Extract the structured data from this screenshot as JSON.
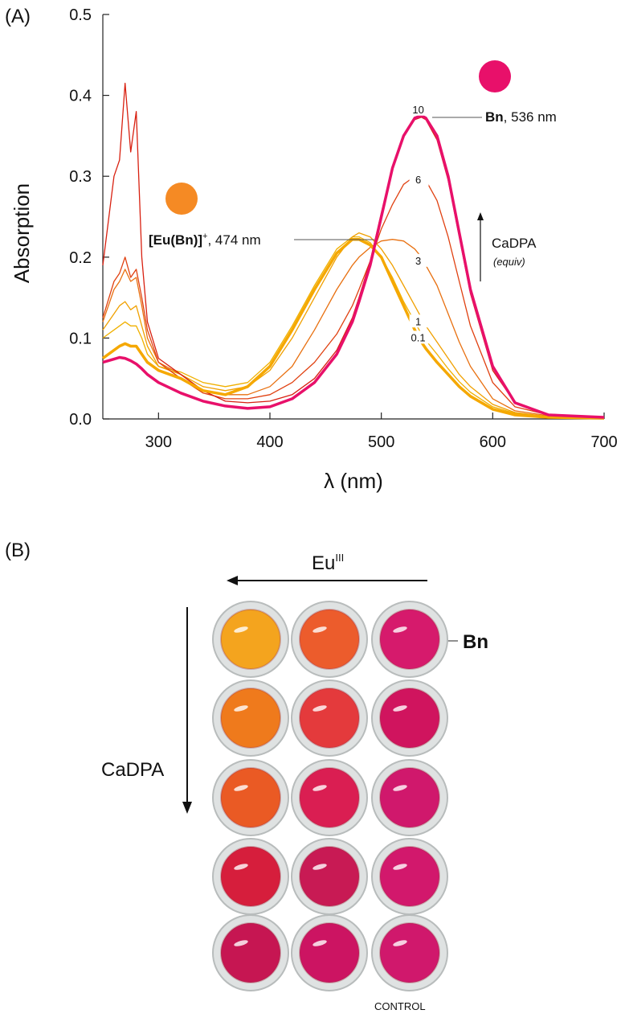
{
  "chart_data": {
    "type": "line",
    "panel_label": "(A)",
    "x_label": "λ (nm)",
    "y_label": "Absorption",
    "xlim": [
      250,
      700
    ],
    "xticks": [
      300,
      400,
      500,
      600,
      700
    ],
    "ylim": [
      0,
      0.5
    ],
    "yticks": [
      {
        "value": 0,
        "label": "0.0"
      },
      0.1,
      0.2,
      0.3,
      0.4,
      0.5
    ],
    "x": [
      250,
      260,
      265,
      270,
      275,
      280,
      285,
      290,
      300,
      320,
      340,
      360,
      380,
      400,
      420,
      440,
      460,
      474,
      480,
      490,
      500,
      510,
      520,
      530,
      536,
      540,
      550,
      560,
      570,
      580,
      600,
      620,
      650,
      700
    ],
    "series": [
      {
        "name": "0.1",
        "color": "#f0b000",
        "values": [
          0.1,
          0.11,
          0.115,
          0.12,
          0.115,
          0.115,
          0.1,
          0.08,
          0.065,
          0.058,
          0.045,
          0.04,
          0.045,
          0.07,
          0.115,
          0.165,
          0.21,
          0.225,
          0.225,
          0.218,
          0.2,
          0.175,
          0.145,
          0.12,
          0.105,
          0.097,
          0.08,
          0.062,
          0.046,
          0.033,
          0.015,
          0.007,
          0.003,
          0.001
        ]
      },
      {
        "name": "1",
        "color": "#f0a000",
        "values": [
          0.11,
          0.13,
          0.14,
          0.145,
          0.135,
          0.14,
          0.115,
          0.09,
          0.065,
          0.055,
          0.04,
          0.035,
          0.04,
          0.06,
          0.1,
          0.15,
          0.2,
          0.225,
          0.23,
          0.225,
          0.21,
          0.19,
          0.165,
          0.14,
          0.125,
          0.115,
          0.095,
          0.075,
          0.055,
          0.04,
          0.018,
          0.008,
          0.003,
          0.001
        ]
      },
      {
        "name": "3",
        "color": "#e87010",
        "values": [
          0.12,
          0.16,
          0.17,
          0.185,
          0.17,
          0.175,
          0.14,
          0.1,
          0.07,
          0.055,
          0.035,
          0.03,
          0.03,
          0.04,
          0.065,
          0.11,
          0.16,
          0.19,
          0.2,
          0.212,
          0.22,
          0.222,
          0.22,
          0.21,
          0.2,
          0.19,
          0.165,
          0.13,
          0.095,
          0.065,
          0.025,
          0.01,
          0.004,
          0.002
        ]
      },
      {
        "name": "6",
        "color": "#e04010",
        "values": [
          0.125,
          0.17,
          0.18,
          0.2,
          0.175,
          0.185,
          0.15,
          0.11,
          0.07,
          0.05,
          0.032,
          0.025,
          0.025,
          0.03,
          0.045,
          0.07,
          0.105,
          0.14,
          0.16,
          0.195,
          0.235,
          0.265,
          0.29,
          0.3,
          0.3,
          0.295,
          0.27,
          0.225,
          0.17,
          0.115,
          0.045,
          0.015,
          0.005,
          0.002
        ]
      },
      {
        "name": "10",
        "color": "#d82010",
        "values": [
          0.19,
          0.3,
          0.32,
          0.415,
          0.33,
          0.38,
          0.2,
          0.12,
          0.075,
          0.055,
          0.035,
          0.022,
          0.02,
          0.022,
          0.03,
          0.05,
          0.085,
          0.125,
          0.15,
          0.195,
          0.255,
          0.31,
          0.35,
          0.37,
          0.373,
          0.37,
          0.345,
          0.295,
          0.225,
          0.155,
          0.06,
          0.02,
          0.006,
          0.002
        ]
      },
      {
        "color": "#f5a800",
        "values": [
          0.075,
          0.085,
          0.09,
          0.093,
          0.09,
          0.09,
          0.08,
          0.07,
          0.06,
          0.05,
          0.035,
          0.03,
          0.04,
          0.065,
          0.11,
          0.16,
          0.205,
          0.222,
          0.222,
          0.215,
          0.2,
          0.17,
          0.14,
          0.11,
          0.095,
          0.087,
          0.07,
          0.055,
          0.04,
          0.028,
          0.012,
          0.005,
          0.002,
          0.001
        ]
      },
      {
        "color": "#e8106a",
        "values": [
          0.07,
          0.074,
          0.076,
          0.075,
          0.072,
          0.068,
          0.062,
          0.055,
          0.045,
          0.032,
          0.022,
          0.016,
          0.013,
          0.015,
          0.025,
          0.045,
          0.08,
          0.12,
          0.145,
          0.19,
          0.25,
          0.31,
          0.35,
          0.372,
          0.375,
          0.372,
          0.35,
          0.3,
          0.23,
          0.16,
          0.065,
          0.02,
          0.005,
          0.002
        ]
      }
    ],
    "annotations": [
      {
        "bold": "[Eu(Bn)]",
        "sup": "+",
        "text": ", 474 nm"
      },
      {
        "bold": "Bn",
        "text": ", 536 nm"
      }
    ],
    "arrow_label": "CaDPA",
    "arrow_sublabel": "(equiv)"
  },
  "panel_b": {
    "label": "(B)",
    "top_arrow": {
      "text": "Eu",
      "sup": "III"
    },
    "side_arrow": "CaDPA",
    "well_label": "Bn",
    "footer": "CONTROL"
  }
}
